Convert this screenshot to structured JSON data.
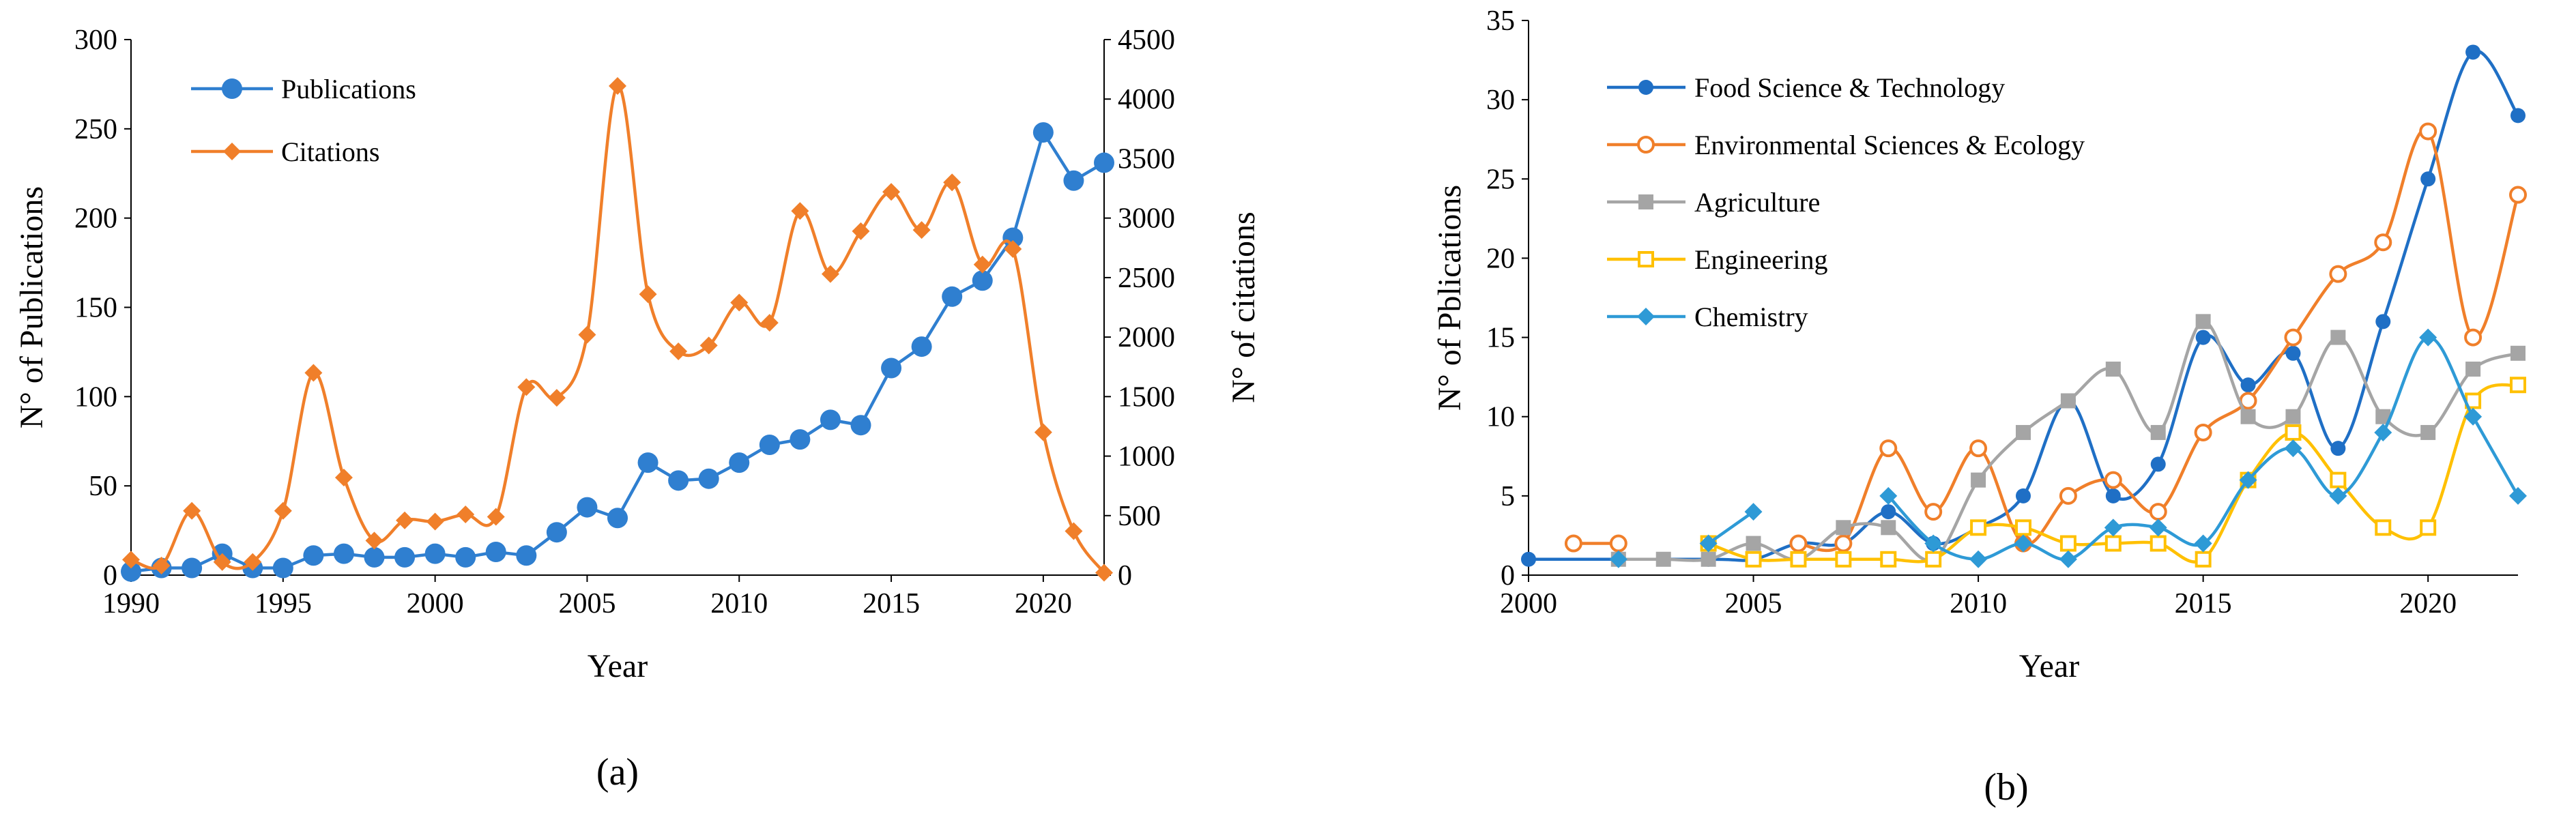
{
  "chart_data": [
    {
      "panel_label": "(a)",
      "type": "line",
      "xlabel": "Year",
      "ylabel_left": "N° of Publications",
      "ylabel_right": "N° of citations",
      "xlim": [
        1990,
        2022
      ],
      "ylim_left": [
        0,
        300
      ],
      "ylim_right": [
        0,
        4500
      ],
      "x_ticks": [
        "1990",
        "1995",
        "2000",
        "2005",
        "2010",
        "2015",
        "2020"
      ],
      "y_ticks_left": [
        "0",
        "50",
        "100",
        "150",
        "200",
        "250",
        "300"
      ],
      "y_ticks_right": [
        "0",
        "500",
        "1000",
        "1500",
        "2000",
        "2500",
        "3000",
        "3500",
        "4000",
        "4500"
      ],
      "legend_position": "top-left",
      "series": [
        {
          "name": "Publications",
          "axis": "left",
          "color": "#2F7FD0",
          "marker": "circle",
          "x": [
            1990,
            1991,
            1992,
            1993,
            1994,
            1995,
            1996,
            1997,
            1998,
            1999,
            2000,
            2001,
            2002,
            2003,
            2004,
            2005,
            2006,
            2007,
            2008,
            2009,
            2010,
            2011,
            2012,
            2013,
            2014,
            2015,
            2016,
            2017,
            2018,
            2019,
            2020,
            2021,
            2022
          ],
          "values": [
            2,
            4,
            4,
            12,
            4,
            4,
            11,
            12,
            10,
            10,
            12,
            10,
            13,
            11,
            24,
            38,
            32,
            63,
            53,
            54,
            63,
            73,
            76,
            87,
            84,
            116,
            128,
            156,
            165,
            189,
            248,
            221,
            231
          ]
        },
        {
          "name": "Citations",
          "axis": "right",
          "color": "#F07F2A",
          "marker": "diamond",
          "x": [
            1990,
            1991,
            1992,
            1993,
            1994,
            1995,
            1996,
            1997,
            1998,
            1999,
            2000,
            2001,
            2002,
            2003,
            2004,
            2005,
            2006,
            2007,
            2008,
            2009,
            2010,
            2011,
            2012,
            2013,
            2014,
            2015,
            2016,
            2017,
            2018,
            2019,
            2020,
            2021,
            2022
          ],
          "values": [
            130,
            80,
            540,
            110,
            110,
            540,
            1700,
            820,
            290,
            460,
            450,
            510,
            490,
            1580,
            1490,
            2020,
            4110,
            2360,
            1880,
            1930,
            2290,
            2120,
            3060,
            2530,
            2890,
            3220,
            2900,
            3300,
            2610,
            2740,
            1200,
            370,
            20
          ]
        }
      ]
    },
    {
      "panel_label": "(b)",
      "type": "line",
      "xlabel": "Year",
      "ylabel": "N° of Pblications",
      "xlim": [
        2000,
        2022
      ],
      "ylim": [
        0,
        35
      ],
      "x_ticks": [
        "2000",
        "2005",
        "2010",
        "2015",
        "2020"
      ],
      "y_ticks": [
        "0",
        "5",
        "10",
        "15",
        "20",
        "25",
        "30",
        "35"
      ],
      "legend_position": "top-left",
      "series": [
        {
          "name": "Food Science & Technology",
          "color": "#1F6FC5",
          "marker": "circle-filled",
          "x": [
            2000,
            2004,
            2005,
            2006,
            2007,
            2008,
            2009,
            2010,
            2011,
            2012,
            2013,
            2014,
            2015,
            2016,
            2017,
            2018,
            2019,
            2020,
            2021,
            2022
          ],
          "values": [
            1,
            1,
            1,
            2,
            2,
            4,
            2,
            3,
            5,
            11,
            5,
            7,
            15,
            12,
            14,
            8,
            16,
            25,
            33,
            29
          ]
        },
        {
          "name": "Environmental Sciences & Ecology",
          "color": "#F07F2A",
          "marker": "circle-open",
          "x": [
            2001,
            2002,
            null,
            2006,
            2007,
            2008,
            2009,
            2010,
            2011,
            2012,
            2013,
            2014,
            2015,
            2016,
            2017,
            2018,
            2019,
            2020,
            2021,
            2022
          ],
          "values": [
            2,
            2,
            null,
            2,
            2,
            8,
            4,
            8,
            2,
            5,
            6,
            4,
            9,
            11,
            15,
            19,
            21,
            28,
            15,
            24
          ]
        },
        {
          "name": "Agriculture",
          "color": "#A5A5A5",
          "marker": "square-filled",
          "x": [
            2002,
            2003,
            2004,
            2005,
            2006,
            2007,
            2008,
            2009,
            2010,
            2011,
            2012,
            2013,
            2014,
            2015,
            2016,
            2017,
            2018,
            2019,
            2020,
            2021,
            2022
          ],
          "values": [
            1,
            1,
            1,
            2,
            1,
            3,
            3,
            1,
            6,
            9,
            11,
            13,
            9,
            16,
            10,
            10,
            15,
            10,
            9,
            13,
            14
          ]
        },
        {
          "name": "Engineering",
          "color": "#FFC000",
          "marker": "square-open",
          "x": [
            2004,
            2005,
            2006,
            2007,
            2008,
            2009,
            2010,
            2011,
            2012,
            2013,
            2014,
            2015,
            2016,
            2017,
            2018,
            2019,
            2020,
            2021,
            2022
          ],
          "values": [
            2,
            1,
            1,
            1,
            1,
            1,
            3,
            3,
            2,
            2,
            2,
            1,
            6,
            9,
            6,
            3,
            3,
            11,
            12
          ]
        },
        {
          "name": "Chemistry",
          "color": "#2E9AD6",
          "marker": "diamond",
          "x": [
            2002,
            null,
            2004,
            2005,
            null,
            2008,
            2009,
            2010,
            2011,
            2012,
            2013,
            2014,
            2015,
            2016,
            2017,
            2018,
            2019,
            2020,
            2021,
            2022
          ],
          "values": [
            1,
            null,
            2,
            4,
            null,
            5,
            2,
            1,
            2,
            1,
            3,
            3,
            2,
            6,
            8,
            5,
            9,
            15,
            10,
            5
          ]
        }
      ]
    }
  ]
}
